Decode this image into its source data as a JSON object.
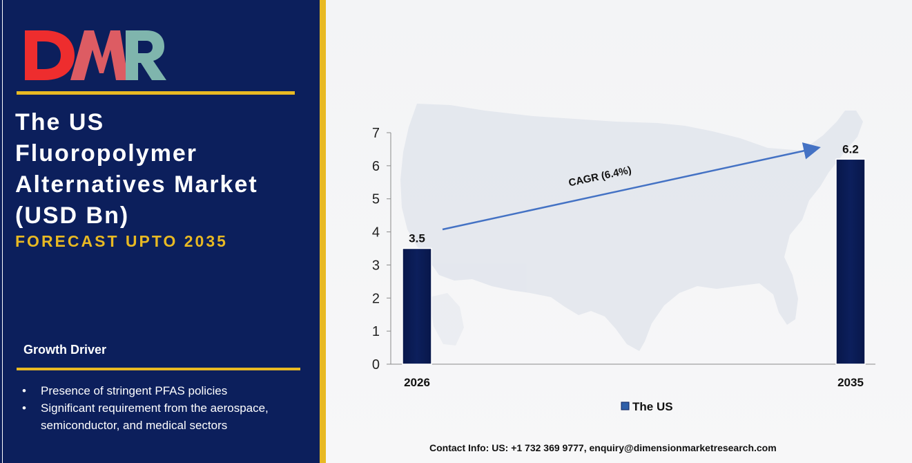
{
  "logo": {
    "text": "DMR",
    "colors": {
      "d": "#ee2d2e",
      "m": "#f06264",
      "r": "#7fb5ad"
    }
  },
  "header": {
    "title_lines": [
      "The US",
      "Fluoropolymer",
      "Alternatives Market",
      "(USD Bn)"
    ],
    "subtitle": "FORECAST UPTO 2035"
  },
  "growth_driver": {
    "heading": "Growth Driver",
    "items": [
      "Presence of stringent PFAS policies",
      "Significant requirement from the aerospace, semiconductor, and medical sectors"
    ]
  },
  "chart_data": {
    "type": "bar",
    "categories": [
      "2026",
      "2035"
    ],
    "series": [
      {
        "name": "The US",
        "values": [
          3.5,
          6.2
        ]
      }
    ],
    "data_labels": [
      "3.5",
      "6.2"
    ],
    "ylim": [
      0,
      7
    ],
    "yticks": [
      0,
      1,
      2,
      3,
      4,
      5,
      6,
      7
    ],
    "annotation": "CAGR (6.4%)",
    "legend_position": "bottom",
    "grid": false,
    "background": "map-of-us",
    "bar_color": "#0c1f5c",
    "arrow_color": "#4472c4"
  },
  "footer": {
    "contact": "Contact Info: US: +1 732 369 9777, enquiry@dimensionmarketresearch.com"
  },
  "colors": {
    "panel": "#0c1f5c",
    "accent": "#e8b923",
    "bar": "#0c1f5c",
    "arrow": "#4472c4"
  }
}
